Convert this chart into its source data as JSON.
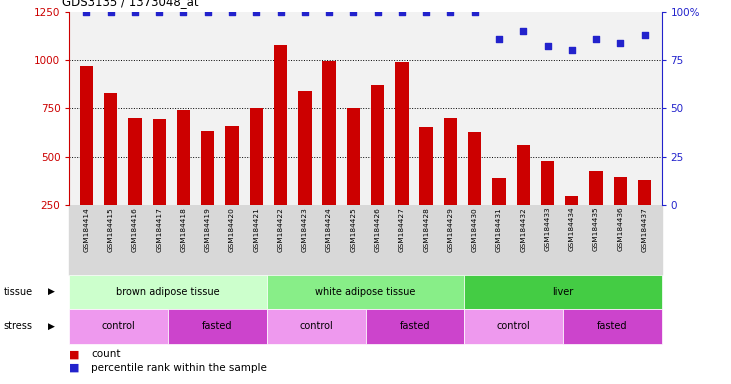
{
  "title": "GDS3135 / 1373048_at",
  "samples": [
    "GSM184414",
    "GSM184415",
    "GSM184416",
    "GSM184417",
    "GSM184418",
    "GSM184419",
    "GSM184420",
    "GSM184421",
    "GSM184422",
    "GSM184423",
    "GSM184424",
    "GSM184425",
    "GSM184426",
    "GSM184427",
    "GSM184428",
    "GSM184429",
    "GSM184430",
    "GSM184431",
    "GSM184432",
    "GSM184433",
    "GSM184434",
    "GSM184435",
    "GSM184436",
    "GSM184437"
  ],
  "bar_values": [
    970,
    830,
    700,
    695,
    740,
    635,
    660,
    750,
    1075,
    840,
    995,
    750,
    870,
    990,
    655,
    700,
    630,
    390,
    560,
    480,
    300,
    430,
    395,
    380
  ],
  "percentile_values": [
    100,
    100,
    100,
    100,
    100,
    100,
    100,
    100,
    100,
    100,
    100,
    100,
    100,
    100,
    100,
    100,
    100,
    86,
    90,
    82,
    80,
    86,
    84,
    88
  ],
  "bar_color": "#cc0000",
  "dot_color": "#2222cc",
  "tissue_groups": [
    {
      "label": "brown adipose tissue",
      "start": 0,
      "end": 8,
      "color": "#ccffcc"
    },
    {
      "label": "white adipose tissue",
      "start": 8,
      "end": 16,
      "color": "#88ee88"
    },
    {
      "label": "liver",
      "start": 16,
      "end": 24,
      "color": "#44cc44"
    }
  ],
  "stress_groups": [
    {
      "label": "control",
      "start": 0,
      "end": 4,
      "color": "#ee99ee"
    },
    {
      "label": "fasted",
      "start": 4,
      "end": 8,
      "color": "#cc44cc"
    },
    {
      "label": "control",
      "start": 8,
      "end": 12,
      "color": "#ee99ee"
    },
    {
      "label": "fasted",
      "start": 12,
      "end": 16,
      "color": "#cc44cc"
    },
    {
      "label": "control",
      "start": 16,
      "end": 20,
      "color": "#ee99ee"
    },
    {
      "label": "fasted",
      "start": 20,
      "end": 24,
      "color": "#cc44cc"
    }
  ],
  "yticks_left": [
    250,
    500,
    750,
    1000,
    1250
  ],
  "yticks_right": [
    0,
    25,
    50,
    75,
    100
  ],
  "ylim_left": [
    250,
    1250
  ],
  "ylim_right": [
    0,
    100
  ],
  "left_color": "#cc0000",
  "right_color": "#2222cc"
}
